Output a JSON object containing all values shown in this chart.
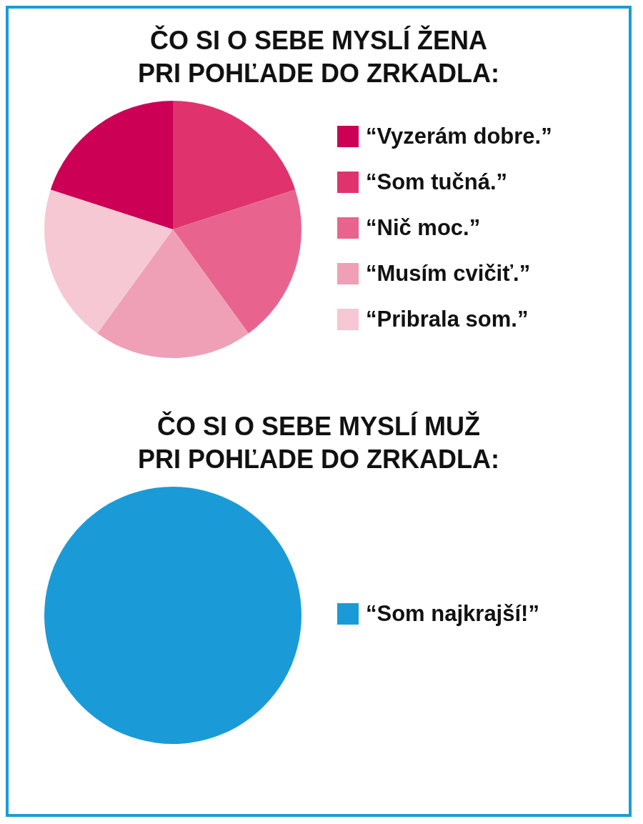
{
  "chart_data": [
    {
      "type": "pie",
      "title": "ČO SI O SEBE MYSLÍ ŽENA\nPRI POHĽADE DO ZRKADLA:",
      "categories": [
        "“Vyzerám dobre.”",
        "“Som tučná.”",
        "“Nič moc.”",
        "“Musím cvičiť.”",
        "“Pribrala som.”"
      ],
      "values": [
        20,
        20,
        20,
        20,
        20
      ],
      "colors": [
        "#cc0055",
        "#e0336e",
        "#e8648e",
        "#efa0b6",
        "#f5c8d3"
      ],
      "legend": "right"
    },
    {
      "type": "pie",
      "title": "ČO SI O SEBE MYSLÍ MUŽ\nPRI POHĽADE DO ZRKADLA:",
      "categories": [
        "“Som najkrajší!”"
      ],
      "values": [
        100
      ],
      "colors": [
        "#1a9bd7"
      ],
      "legend": "right"
    }
  ]
}
